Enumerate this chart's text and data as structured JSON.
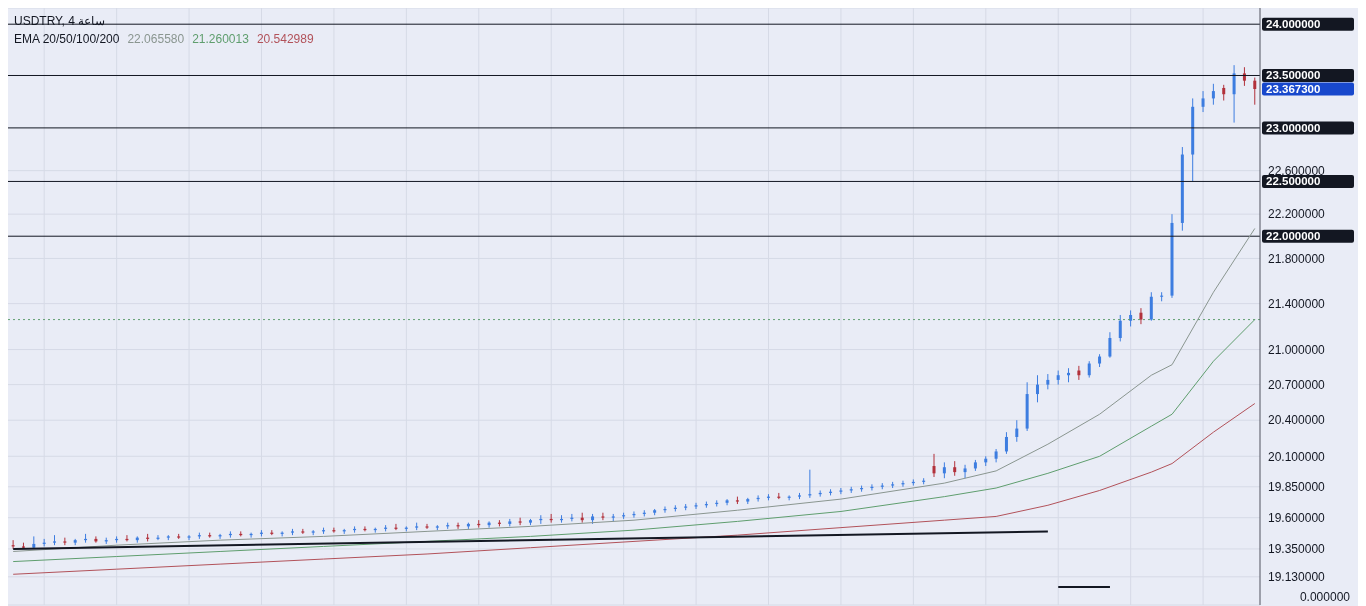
{
  "chart_data": {
    "type": "candlestick",
    "title": "USDTRY, 4 ساعة",
    "subtitle": "EMA 20/50/100/200",
    "categories": [
      null,
      null,
      null,
      null,
      null,
      null,
      null,
      null,
      null,
      null,
      null,
      null,
      null,
      null,
      null,
      null,
      null,
      null,
      null,
      null,
      null,
      null,
      null,
      null,
      null,
      null,
      null,
      null,
      null,
      null,
      null,
      null,
      null,
      null,
      null,
      null,
      null,
      null,
      null,
      null,
      null,
      null,
      null,
      null,
      null,
      null,
      null,
      null,
      null,
      null,
      null,
      null,
      null,
      null,
      null,
      null,
      null,
      null,
      null,
      null,
      null,
      null,
      null,
      null,
      null,
      null,
      null,
      null,
      null,
      null,
      null,
      null,
      null,
      null,
      null,
      null,
      null,
      null,
      null,
      null,
      null,
      null,
      null,
      null,
      null,
      null,
      null,
      null,
      null,
      null,
      null,
      null,
      null,
      null,
      null,
      null,
      null,
      null,
      null,
      null,
      null,
      null,
      null,
      null,
      null,
      null,
      null,
      null,
      null,
      null,
      null,
      null,
      null,
      null,
      null,
      null,
      null,
      null,
      null,
      null,
      null
    ],
    "ohlc": [
      [
        19.38,
        19.42,
        19.35,
        19.37
      ],
      [
        19.37,
        19.4,
        19.35,
        19.36
      ],
      [
        19.36,
        19.45,
        19.35,
        19.39
      ],
      [
        19.39,
        19.43,
        19.37,
        19.4
      ],
      [
        19.4,
        19.46,
        19.38,
        19.41
      ],
      [
        19.41,
        19.44,
        19.38,
        19.4
      ],
      [
        19.4,
        19.43,
        19.38,
        19.42
      ],
      [
        19.42,
        19.47,
        19.4,
        19.43
      ],
      [
        19.43,
        19.45,
        19.4,
        19.41
      ],
      [
        19.41,
        19.44,
        19.39,
        19.42
      ],
      [
        19.42,
        19.45,
        19.4,
        19.43
      ],
      [
        19.43,
        19.46,
        19.41,
        19.42
      ],
      [
        19.42,
        19.45,
        19.4,
        19.44
      ],
      [
        19.44,
        19.47,
        19.41,
        19.43
      ],
      [
        19.43,
        19.46,
        19.42,
        19.44
      ],
      [
        19.44,
        19.46,
        19.42,
        19.45
      ],
      [
        19.45,
        19.47,
        19.43,
        19.44
      ],
      [
        19.44,
        19.46,
        19.42,
        19.45
      ],
      [
        19.45,
        19.48,
        19.43,
        19.46
      ],
      [
        19.46,
        19.48,
        19.44,
        19.45
      ],
      [
        19.45,
        19.47,
        19.43,
        19.46
      ],
      [
        19.46,
        19.49,
        19.44,
        19.47
      ],
      [
        19.47,
        19.49,
        19.45,
        19.46
      ],
      [
        19.46,
        19.48,
        19.44,
        19.47
      ],
      [
        19.47,
        19.5,
        19.45,
        19.48
      ],
      [
        19.48,
        19.5,
        19.46,
        19.47
      ],
      [
        19.47,
        19.49,
        19.45,
        19.48
      ],
      [
        19.48,
        19.51,
        19.46,
        19.49
      ],
      [
        19.49,
        19.51,
        19.47,
        19.48
      ],
      [
        19.48,
        19.5,
        19.46,
        19.49
      ],
      [
        19.49,
        19.52,
        19.47,
        19.5
      ],
      [
        19.5,
        19.52,
        19.48,
        19.49
      ],
      [
        19.49,
        19.51,
        19.47,
        19.5
      ],
      [
        19.5,
        19.53,
        19.48,
        19.51
      ],
      [
        19.51,
        19.53,
        19.49,
        19.5
      ],
      [
        19.5,
        19.52,
        19.48,
        19.51
      ],
      [
        19.51,
        19.54,
        19.49,
        19.52
      ],
      [
        19.52,
        19.55,
        19.5,
        19.51
      ],
      [
        19.51,
        19.53,
        19.49,
        19.52
      ],
      [
        19.52,
        19.56,
        19.5,
        19.53
      ],
      [
        19.53,
        19.55,
        19.51,
        19.52
      ],
      [
        19.52,
        19.54,
        19.5,
        19.53
      ],
      [
        19.53,
        19.56,
        19.51,
        19.54
      ],
      [
        19.54,
        19.56,
        19.51,
        19.53
      ],
      [
        19.53,
        19.56,
        19.51,
        19.55
      ],
      [
        19.55,
        19.58,
        19.52,
        19.54
      ],
      [
        19.54,
        19.57,
        19.52,
        19.56
      ],
      [
        19.56,
        19.58,
        19.53,
        19.55
      ],
      [
        19.55,
        19.59,
        19.53,
        19.57
      ],
      [
        19.57,
        19.6,
        19.54,
        19.56
      ],
      [
        19.56,
        19.59,
        19.54,
        19.58
      ],
      [
        19.58,
        19.62,
        19.55,
        19.59
      ],
      [
        19.59,
        19.63,
        19.56,
        19.58
      ],
      [
        19.58,
        19.62,
        19.56,
        19.59
      ],
      [
        19.59,
        19.63,
        19.57,
        19.6
      ],
      [
        19.6,
        19.64,
        19.56,
        19.58
      ],
      [
        19.58,
        19.63,
        19.55,
        19.61
      ],
      [
        19.61,
        19.64,
        19.58,
        19.6
      ],
      [
        19.6,
        19.63,
        19.57,
        19.61
      ],
      [
        19.61,
        19.64,
        19.59,
        19.62
      ],
      [
        19.62,
        19.65,
        19.6,
        19.63
      ],
      [
        19.63,
        19.66,
        19.61,
        19.64
      ],
      [
        19.64,
        19.67,
        19.62,
        19.66
      ],
      [
        19.66,
        19.69,
        19.64,
        19.67
      ],
      [
        19.67,
        19.7,
        19.65,
        19.68
      ],
      [
        19.68,
        19.71,
        19.66,
        19.69
      ],
      [
        19.69,
        19.72,
        19.67,
        19.7
      ],
      [
        19.7,
        19.73,
        19.68,
        19.71
      ],
      [
        19.71,
        19.74,
        19.69,
        19.72
      ],
      [
        19.72,
        19.75,
        19.7,
        19.74
      ],
      [
        19.74,
        19.77,
        19.71,
        19.73
      ],
      [
        19.73,
        19.76,
        19.71,
        19.75
      ],
      [
        19.75,
        19.78,
        19.73,
        19.76
      ],
      [
        19.76,
        19.79,
        19.74,
        19.77
      ],
      [
        19.77,
        19.8,
        19.75,
        19.76
      ],
      [
        19.76,
        19.78,
        19.74,
        19.77
      ],
      [
        19.77,
        19.8,
        19.75,
        19.78
      ],
      [
        19.78,
        19.99,
        19.76,
        19.79
      ],
      [
        19.79,
        19.82,
        19.77,
        19.8
      ],
      [
        19.8,
        19.83,
        19.78,
        19.81
      ],
      [
        19.81,
        19.84,
        19.79,
        19.82
      ],
      [
        19.82,
        19.85,
        19.8,
        19.83
      ],
      [
        19.83,
        19.86,
        19.81,
        19.84
      ],
      [
        19.84,
        19.87,
        19.82,
        19.85
      ],
      [
        19.85,
        19.88,
        19.83,
        19.86
      ],
      [
        19.86,
        19.89,
        19.84,
        19.87
      ],
      [
        19.87,
        19.9,
        19.85,
        19.88
      ],
      [
        19.88,
        19.91,
        19.86,
        19.89
      ],
      [
        19.89,
        19.92,
        19.87,
        19.9
      ],
      [
        20.02,
        20.12,
        19.93,
        19.96
      ],
      [
        19.96,
        20.05,
        19.92,
        20.01
      ],
      [
        20.01,
        20.06,
        19.94,
        19.97
      ],
      [
        19.97,
        20.03,
        19.92,
        20.0
      ],
      [
        20.0,
        20.07,
        19.98,
        20.05
      ],
      [
        20.05,
        20.1,
        20.02,
        20.08
      ],
      [
        20.08,
        20.16,
        20.05,
        20.14
      ],
      [
        20.14,
        20.3,
        20.12,
        20.26
      ],
      [
        20.26,
        20.4,
        20.22,
        20.33
      ],
      [
        20.33,
        20.72,
        20.31,
        20.62
      ],
      [
        20.62,
        20.78,
        20.55,
        20.7
      ],
      [
        20.7,
        20.79,
        20.66,
        20.74
      ],
      [
        20.74,
        20.82,
        20.7,
        20.78
      ],
      [
        20.78,
        20.84,
        20.72,
        20.8
      ],
      [
        20.82,
        20.86,
        20.74,
        20.78
      ],
      [
        20.78,
        20.9,
        20.76,
        20.88
      ],
      [
        20.88,
        20.96,
        20.85,
        20.94
      ],
      [
        20.94,
        21.15,
        20.93,
        21.1
      ],
      [
        21.1,
        21.3,
        21.07,
        21.25
      ],
      [
        21.25,
        21.34,
        21.2,
        21.3
      ],
      [
        21.32,
        21.36,
        21.22,
        21.26
      ],
      [
        21.26,
        21.5,
        21.25,
        21.46
      ],
      [
        21.46,
        21.5,
        21.42,
        21.47
      ],
      [
        21.47,
        22.2,
        21.45,
        22.12
      ],
      [
        22.12,
        22.82,
        22.05,
        22.75
      ],
      [
        22.75,
        23.28,
        22.5,
        23.2
      ],
      [
        23.2,
        23.35,
        23.15,
        23.28
      ],
      [
        23.28,
        23.42,
        23.22,
        23.35
      ],
      [
        23.38,
        23.41,
        23.26,
        23.32
      ],
      [
        23.32,
        23.6,
        23.05,
        23.52
      ],
      [
        23.52,
        23.58,
        23.4,
        23.45
      ],
      [
        23.45,
        23.48,
        23.22,
        23.37
      ]
    ],
    "series": [
      {
        "type": "line",
        "name": "22.065580",
        "color": "#8a9690",
        "values": [
          19.33,
          null,
          null,
          null,
          null,
          null,
          null,
          null,
          null,
          null,
          19.38,
          null,
          null,
          null,
          null,
          null,
          null,
          null,
          null,
          null,
          19.42,
          null,
          null,
          null,
          null,
          null,
          null,
          null,
          null,
          null,
          19.45,
          null,
          null,
          null,
          null,
          null,
          null,
          null,
          null,
          null,
          19.49,
          null,
          null,
          null,
          null,
          null,
          null,
          null,
          null,
          null,
          19.53,
          null,
          null,
          null,
          null,
          null,
          null,
          null,
          null,
          null,
          19.58,
          null,
          null,
          null,
          null,
          null,
          null,
          null,
          null,
          null,
          19.66,
          null,
          null,
          null,
          null,
          null,
          null,
          null,
          null,
          null,
          19.75,
          null,
          null,
          null,
          null,
          null,
          null,
          null,
          null,
          null,
          19.88,
          null,
          null,
          null,
          null,
          19.98,
          null,
          null,
          null,
          null,
          20.2,
          null,
          null,
          null,
          null,
          20.45,
          null,
          null,
          null,
          null,
          20.78,
          null,
          20.87,
          null,
          null,
          null,
          21.5,
          null,
          null,
          null,
          22.07
        ]
      },
      {
        "type": "line",
        "name": "21.260013",
        "color": "#5f9e6e",
        "values": [
          19.25,
          null,
          null,
          null,
          null,
          null,
          null,
          null,
          null,
          null,
          19.29,
          null,
          null,
          null,
          null,
          null,
          null,
          null,
          null,
          null,
          19.33,
          null,
          null,
          null,
          null,
          null,
          null,
          null,
          null,
          null,
          19.37,
          null,
          null,
          null,
          null,
          null,
          null,
          null,
          null,
          null,
          19.41,
          null,
          null,
          null,
          null,
          null,
          null,
          null,
          null,
          null,
          19.45,
          null,
          null,
          null,
          null,
          null,
          null,
          null,
          null,
          null,
          19.5,
          null,
          null,
          null,
          null,
          null,
          null,
          null,
          null,
          null,
          19.57,
          null,
          null,
          null,
          null,
          null,
          null,
          null,
          null,
          null,
          19.65,
          null,
          null,
          null,
          null,
          null,
          null,
          null,
          null,
          null,
          19.77,
          null,
          null,
          null,
          null,
          19.84,
          null,
          null,
          null,
          null,
          19.96,
          null,
          null,
          null,
          null,
          20.1,
          null,
          null,
          null,
          null,
          20.35,
          null,
          20.45,
          null,
          null,
          null,
          20.9,
          null,
          null,
          null,
          21.26
        ]
      },
      {
        "type": "line",
        "name": "20.542989",
        "color": "#b2525a",
        "values": [
          19.15,
          null,
          null,
          null,
          null,
          null,
          null,
          null,
          null,
          null,
          19.19,
          null,
          null,
          null,
          null,
          null,
          null,
          null,
          null,
          null,
          19.23,
          null,
          null,
          null,
          null,
          null,
          null,
          null,
          null,
          null,
          19.27,
          null,
          null,
          null,
          null,
          null,
          null,
          null,
          null,
          null,
          19.31,
          null,
          null,
          null,
          null,
          null,
          null,
          null,
          null,
          null,
          19.36,
          null,
          null,
          null,
          null,
          null,
          null,
          null,
          null,
          null,
          19.41,
          null,
          null,
          null,
          null,
          null,
          null,
          null,
          null,
          null,
          19.46,
          null,
          null,
          null,
          null,
          null,
          null,
          null,
          null,
          null,
          19.52,
          null,
          null,
          null,
          null,
          null,
          null,
          null,
          null,
          null,
          19.58,
          null,
          null,
          null,
          null,
          19.61,
          null,
          null,
          null,
          null,
          19.7,
          null,
          null,
          null,
          null,
          19.82,
          null,
          null,
          null,
          null,
          19.97,
          null,
          20.04,
          null,
          null,
          null,
          20.3,
          null,
          null,
          null,
          20.54
        ]
      },
      {
        "type": "line",
        "color": "#131722",
        "values": [
          19.35,
          null,
          null,
          null,
          null,
          null,
          null,
          null,
          null,
          null,
          null,
          null,
          null,
          null,
          null,
          null,
          null,
          null,
          null,
          null,
          null,
          null,
          null,
          null,
          null,
          null,
          null,
          null,
          null,
          null,
          null,
          null,
          null,
          null,
          null,
          null,
          null,
          null,
          null,
          null,
          null,
          null,
          null,
          null,
          null,
          null,
          null,
          null,
          null,
          null,
          null,
          null,
          null,
          null,
          null,
          null,
          null,
          null,
          null,
          null,
          null,
          null,
          null,
          null,
          null,
          null,
          null,
          null,
          null,
          null,
          null,
          null,
          null,
          null,
          null,
          null,
          null,
          null,
          null,
          null,
          null,
          null,
          null,
          null,
          null,
          null,
          null,
          null,
          null,
          null,
          null,
          null,
          null,
          null,
          null,
          null,
          null,
          null,
          null,
          null,
          19.49,
          null,
          null,
          null,
          null,
          null,
          null,
          null,
          null,
          null,
          null,
          null,
          null,
          null,
          null,
          null,
          null,
          null,
          null,
          null,
          null
        ]
      },
      {
        "type": "line",
        "color": "#131722",
        "values": [
          null,
          null,
          null,
          null,
          null,
          null,
          null,
          null,
          null,
          null,
          null,
          null,
          null,
          null,
          null,
          null,
          null,
          null,
          null,
          null,
          null,
          null,
          null,
          null,
          null,
          null,
          null,
          null,
          null,
          null,
          null,
          null,
          null,
          null,
          null,
          null,
          null,
          null,
          null,
          null,
          null,
          null,
          null,
          null,
          null,
          null,
          null,
          null,
          null,
          null,
          null,
          null,
          null,
          null,
          null,
          null,
          null,
          null,
          null,
          null,
          null,
          null,
          null,
          null,
          null,
          null,
          null,
          null,
          null,
          null,
          null,
          null,
          null,
          null,
          null,
          null,
          null,
          null,
          null,
          null,
          null,
          null,
          null,
          null,
          null,
          null,
          null,
          null,
          null,
          null,
          null,
          null,
          null,
          null,
          null,
          null,
          null,
          null,
          null,
          null,
          null,
          19.05,
          null,
          null,
          null,
          null,
          19.05,
          null,
          null,
          null,
          null,
          null,
          null,
          null,
          null,
          null,
          null,
          null,
          null,
          null,
          null
        ]
      }
    ],
    "log": "y",
    "ylim": [
      18.91,
      24.16
    ],
    "yticks": [
      {
        "value": 19.13,
        "label": "19.130000"
      },
      {
        "value": 19.35,
        "label": "19.350000"
      },
      {
        "value": 19.6,
        "label": "19.600000"
      },
      {
        "value": 19.85,
        "label": "19.850000"
      },
      {
        "value": 20.1,
        "label": "20.100000"
      },
      {
        "value": 20.4,
        "label": "20.400000"
      },
      {
        "value": 20.7,
        "label": "20.700000"
      },
      {
        "value": 21.0,
        "label": "21.000000"
      },
      {
        "value": 21.4,
        "label": "21.400000"
      },
      {
        "value": 21.8,
        "label": "21.800000"
      },
      {
        "value": 22.2,
        "label": "22.200000"
      },
      {
        "value": 22.6,
        "label": "22.600000"
      }
    ],
    "ref_lines": [
      {
        "axis": "y",
        "value": 24,
        "label": "24.000000",
        "color": "#131722"
      },
      {
        "axis": "y",
        "value": 23.5,
        "label": "23.500000",
        "color": "#131722"
      },
      {
        "axis": "y",
        "value": 23,
        "label": "23.000000",
        "color": "#131722"
      },
      {
        "axis": "y",
        "value": 22.5,
        "label": "22.500000",
        "color": "#131722"
      },
      {
        "axis": "y",
        "value": 22,
        "label": "22.000000",
        "color": "#131722"
      },
      {
        "axis": "y",
        "value": 21.26,
        "color": "#5f9e6e",
        "line_style": "dotted"
      }
    ],
    "annotations": [
      "23.367300",
      "0.000000"
    ],
    "grid": true
  }
}
